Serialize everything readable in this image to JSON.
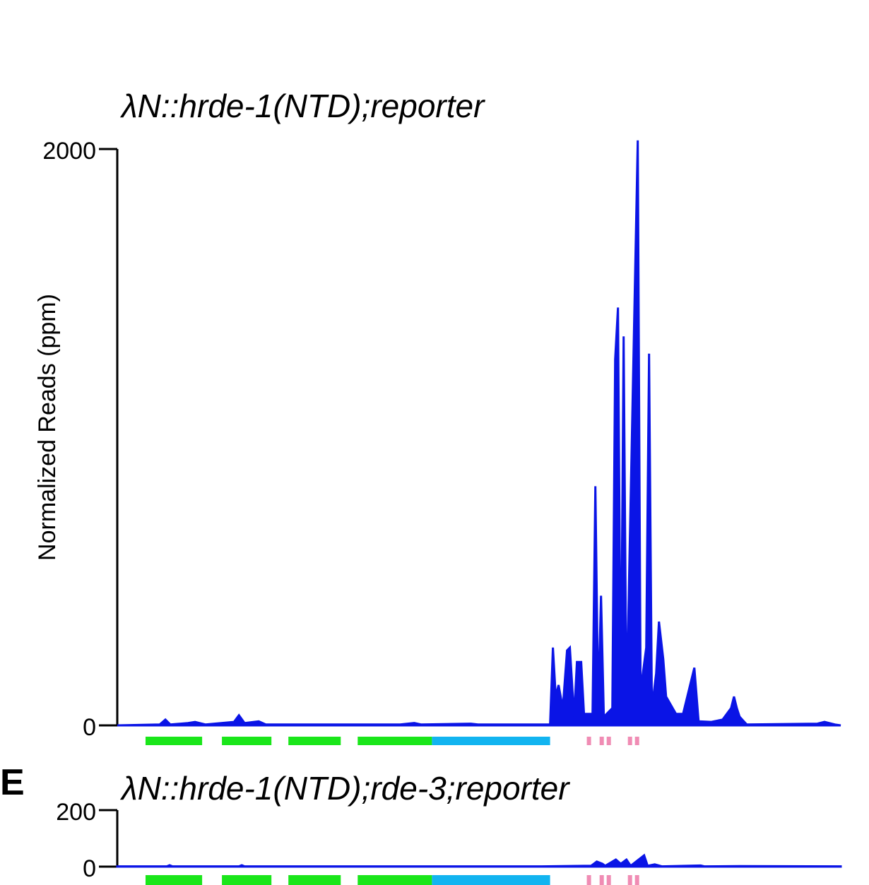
{
  "chart_data": [
    {
      "type": "area",
      "panel_label": "",
      "title": "λN::hrde-1(NTD);reporter",
      "ylabel": "Normalized Reads (ppm)",
      "xlabel": "",
      "ylim": [
        0,
        2000
      ],
      "ytick_labels": [
        "2000",
        "0"
      ],
      "yticks": [
        2000,
        0
      ],
      "series": [
        {
          "color": "#0a14e6",
          "points": [
            [
              0,
              0
            ],
            [
              60,
              3
            ],
            [
              68,
              20
            ],
            [
              75,
              3
            ],
            [
              100,
              8
            ],
            [
              110,
              12
            ],
            [
              125,
              3
            ],
            [
              165,
              12
            ],
            [
              172,
              35
            ],
            [
              180,
              8
            ],
            [
              200,
              14
            ],
            [
              210,
              3
            ],
            [
              400,
              3
            ],
            [
              420,
              8
            ],
            [
              430,
              3
            ],
            [
              500,
              6
            ],
            [
              510,
              3
            ],
            [
              612,
              3
            ],
            [
              616,
              270
            ],
            [
              620,
              100
            ],
            [
              624,
              140
            ],
            [
              630,
              60
            ],
            [
              636,
              260
            ],
            [
              640,
              270
            ],
            [
              646,
              30
            ],
            [
              650,
              220
            ],
            [
              656,
              220
            ],
            [
              660,
              40
            ],
            [
              672,
              40
            ],
            [
              676,
              830
            ],
            [
              680,
              60
            ],
            [
              684,
              450
            ],
            [
              688,
              30
            ],
            [
              700,
              60
            ],
            [
              704,
              1270
            ],
            [
              708,
              1450
            ],
            [
              712,
              30
            ],
            [
              716,
              1350
            ],
            [
              720,
              50
            ],
            [
              736,
              2030
            ],
            [
              740,
              120
            ],
            [
              748,
              270
            ],
            [
              752,
              1290
            ],
            [
              756,
              60
            ],
            [
              762,
              180
            ],
            [
              766,
              360
            ],
            [
              772,
              230
            ],
            [
              776,
              100
            ],
            [
              790,
              40
            ],
            [
              800,
              40
            ],
            [
              816,
              200
            ],
            [
              822,
              14
            ],
            [
              840,
              12
            ],
            [
              856,
              20
            ],
            [
              868,
              60
            ],
            [
              872,
              100
            ],
            [
              876,
              60
            ],
            [
              880,
              30
            ],
            [
              890,
              3
            ],
            [
              990,
              6
            ],
            [
              1000,
              12
            ],
            [
              1015,
              3
            ]
          ]
        }
      ],
      "gene_features": [
        {
          "color": "#1ae61a",
          "start": 40,
          "end": 120
        },
        {
          "color": "#1ae61a",
          "start": 148,
          "end": 218
        },
        {
          "color": "#1ae61a",
          "start": 242,
          "end": 316
        },
        {
          "color": "#1ae61a",
          "start": 340,
          "end": 445
        },
        {
          "color": "#12b4f0",
          "start": 445,
          "end": 612
        },
        {
          "color": "#f08cb4",
          "start": 664,
          "end": 670
        },
        {
          "color": "#f08cb4",
          "start": 682,
          "end": 688
        },
        {
          "color": "#f08cb4",
          "start": 692,
          "end": 698
        },
        {
          "color": "#f08cb4",
          "start": 722,
          "end": 728
        },
        {
          "color": "#f08cb4",
          "start": 732,
          "end": 738
        }
      ]
    },
    {
      "type": "area",
      "panel_label": "E",
      "title": "λN::hrde-1(NTD);rde-3;reporter",
      "ylabel": "",
      "xlabel": "",
      "ylim": [
        0,
        200
      ],
      "ytick_labels": [
        "200",
        "0"
      ],
      "yticks": [
        200,
        0
      ],
      "series": [
        {
          "color": "#0a14e6",
          "points": [
            [
              0,
              1
            ],
            [
              70,
              1
            ],
            [
              74,
              5
            ],
            [
              78,
              1
            ],
            [
              172,
              1
            ],
            [
              176,
              5
            ],
            [
              180,
              1
            ],
            [
              600,
              1
            ],
            [
              670,
              3
            ],
            [
              678,
              18
            ],
            [
              686,
              10
            ],
            [
              690,
              3
            ],
            [
              705,
              25
            ],
            [
              712,
              10
            ],
            [
              720,
              25
            ],
            [
              726,
              3
            ],
            [
              745,
              40
            ],
            [
              750,
              3
            ],
            [
              760,
              8
            ],
            [
              770,
              1
            ],
            [
              825,
              4
            ],
            [
              830,
              1
            ],
            [
              880,
              2
            ],
            [
              1023,
              1
            ]
          ]
        }
      ],
      "gene_features": [
        {
          "color": "#1ae61a",
          "start": 40,
          "end": 120
        },
        {
          "color": "#1ae61a",
          "start": 148,
          "end": 218
        },
        {
          "color": "#1ae61a",
          "start": 242,
          "end": 316
        },
        {
          "color": "#1ae61a",
          "start": 340,
          "end": 445
        },
        {
          "color": "#12b4f0",
          "start": 445,
          "end": 612
        },
        {
          "color": "#f08cb4",
          "start": 664,
          "end": 670
        },
        {
          "color": "#f08cb4",
          "start": 682,
          "end": 688
        },
        {
          "color": "#f08cb4",
          "start": 692,
          "end": 698
        },
        {
          "color": "#f08cb4",
          "start": 722,
          "end": 728
        },
        {
          "color": "#f08cb4",
          "start": 732,
          "end": 738
        }
      ]
    }
  ]
}
